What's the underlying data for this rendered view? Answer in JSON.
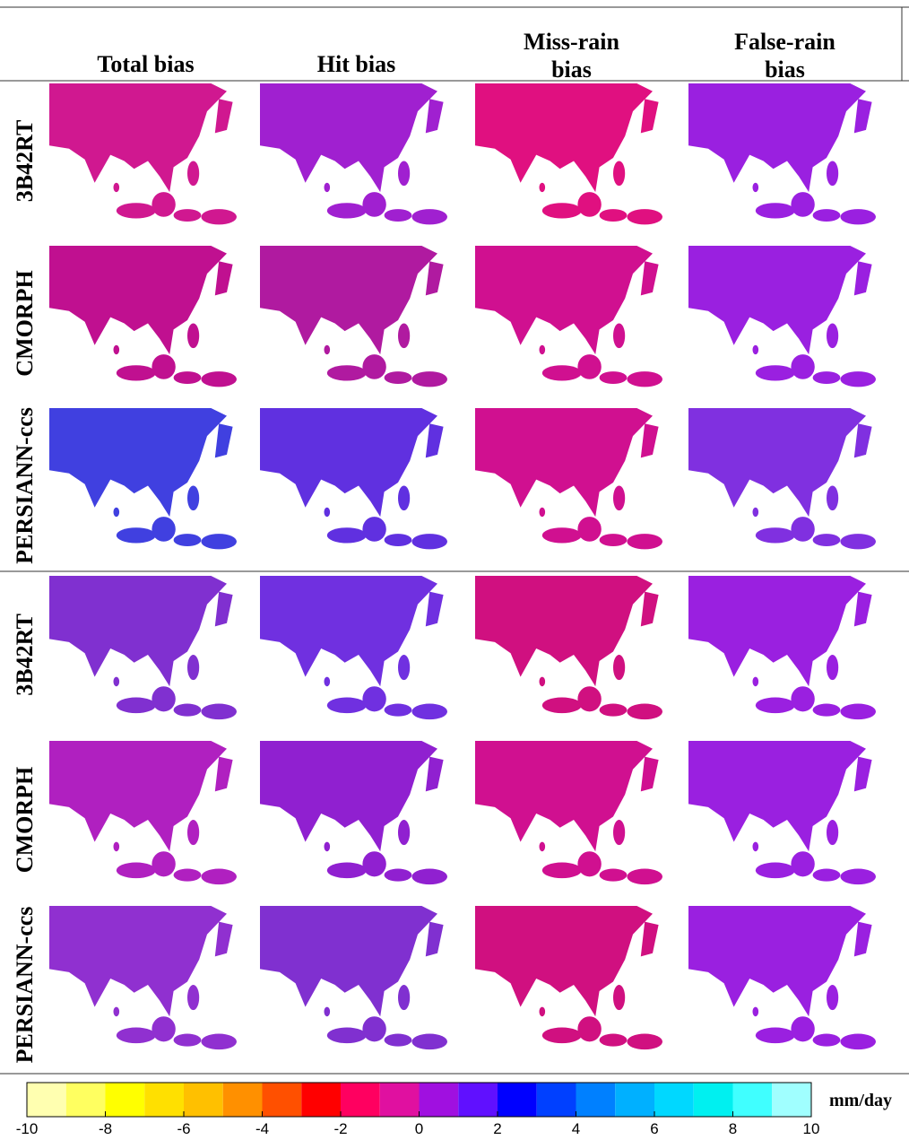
{
  "columns": [
    "Total bias",
    "Hit bias",
    "Miss-rain bias",
    "False-rain bias"
  ],
  "panels": [
    {
      "rows": [
        "3B42RT",
        "CMORPH",
        "PERSIANN-ccs"
      ]
    },
    {
      "rows": [
        "3B42RT",
        "CMORPH",
        "PERSIANN-ccs"
      ]
    }
  ],
  "colorbar": {
    "colors": [
      "#ffffb0",
      "#ffff60",
      "#ffff00",
      "#ffe000",
      "#ffc000",
      "#ff9000",
      "#ff5000",
      "#ff0000",
      "#ff0060",
      "#e010a0",
      "#a010e0",
      "#6010ff",
      "#0000ff",
      "#0040ff",
      "#0080ff",
      "#00b0ff",
      "#00d8ff",
      "#00f0f0",
      "#40ffff",
      "#a0ffff"
    ],
    "xlim": [
      -10,
      10
    ],
    "xticks": [
      -10,
      -8,
      -6,
      -4,
      -2,
      0,
      2,
      4,
      6,
      8,
      10
    ],
    "label": "mm/day"
  }
}
